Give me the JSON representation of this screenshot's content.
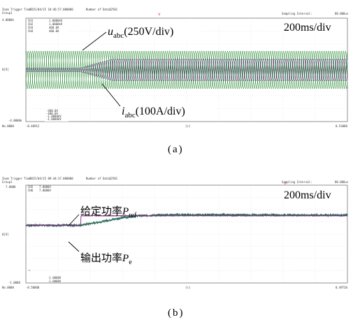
{
  "chart_data": [
    {
      "type": "line",
      "caption": "(a)",
      "header": {
        "trigger_label": "Zoom Trigger Time:",
        "trigger_time": "2015/04/15 10:46:57.000000",
        "group_label": "Group1",
        "data_label": "Number of Data:",
        "data_count": "12501",
        "sampling_label": "Sampling Interval:",
        "sampling_value": "80.000us"
      },
      "time_per_div": "200ms/div",
      "left_ticks": {
        "top": "4.0000k",
        "mid": "0[V]",
        "bottom": "-4.0000k",
        "origin": "No.0000"
      },
      "channel_top": [
        {
          "ch": "CH1",
          "val": "1.0000kV"
        },
        {
          "ch": "CH2",
          "val": "1.0000kV"
        },
        {
          "ch": "CH3",
          "val": "400.0A"
        },
        {
          "ch": "CH4",
          "val": "400.0A"
        }
      ],
      "channel_bottom": [
        "-400.0A",
        "-400.0A",
        "-1.0000kV",
        "-1.0000kV"
      ],
      "x_start": "-0.46912",
      "x_end": "0.53088",
      "x_unit": "[s]",
      "cursor_marker": "v",
      "annotations": {
        "voltage": {
          "sym": "u",
          "sub": "abc",
          "scale": "(250V/div)"
        },
        "current": {
          "sym": "i",
          "sub": "abc",
          "scale": "(100A/div)"
        }
      },
      "series": [
        {
          "channel": "voltage",
          "amplitude_div": 1.45,
          "frequency_hz": 50,
          "phases": 3
        },
        {
          "channel": "current",
          "x": [
            -0.469,
            -0.3,
            -0.2,
            0.531
          ],
          "amplitude_div": [
            0.15,
            0.15,
            0.85,
            0.85
          ],
          "frequency_hz": 50,
          "phases": 3
        }
      ],
      "colors": {
        "voltage": "#2f8f3a",
        "current_a": "#6a2a6a",
        "current_b": "#1f6f7a"
      }
    },
    {
      "type": "line",
      "caption": "(b)",
      "header": {
        "trigger_label": "Zoom Trigger Time:",
        "trigger_time": "2015/04/15 09:44:37.000000",
        "group_label": "Group1",
        "data_label": "Number of Data:",
        "data_count": "12501",
        "sampling_label": "Sampling Interval:",
        "sampling_value": "80.000us"
      },
      "time_per_div": "200ms/div",
      "left_ticks": {
        "top": "7.0000",
        "mid": "0[V]",
        "bottom": "-1.0000",
        "origin": "No.0000"
      },
      "channel_top": [
        {
          "ch": "CH5",
          "val": "7.0000V"
        },
        {
          "ch": "CH6",
          "val": "7.0000V"
        }
      ],
      "channel_bottom": [
        "-1.0000V",
        "-1.0000V"
      ],
      "x_start": "-0.50000",
      "x_end": "0.49720",
      "x_unit": "[s]",
      "cursor_marker": "v",
      "annotations": {
        "ref_power": {
          "text": "给定功率",
          "sym": "P",
          "sub": "ref"
        },
        "out_power": {
          "text": "输出功率",
          "sym": "P",
          "sub": "e"
        }
      },
      "ylim": [
        -1,
        7
      ],
      "series": [
        {
          "channel": "P_ref",
          "x": [
            -0.5,
            -0.33,
            -0.329,
            -0.15,
            0.497
          ],
          "y": [
            3.72,
            3.72,
            4.5,
            4.5,
            4.5
          ]
        },
        {
          "channel": "P_e",
          "x": [
            -0.5,
            -0.33,
            -0.28,
            -0.21,
            -0.15,
            -0.05,
            0.497
          ],
          "y": [
            3.72,
            3.72,
            3.95,
            4.3,
            4.5,
            4.58,
            4.55
          ]
        }
      ],
      "colors": {
        "ref": "#7a2a7a",
        "out": "#2a6a5a"
      }
    }
  ]
}
